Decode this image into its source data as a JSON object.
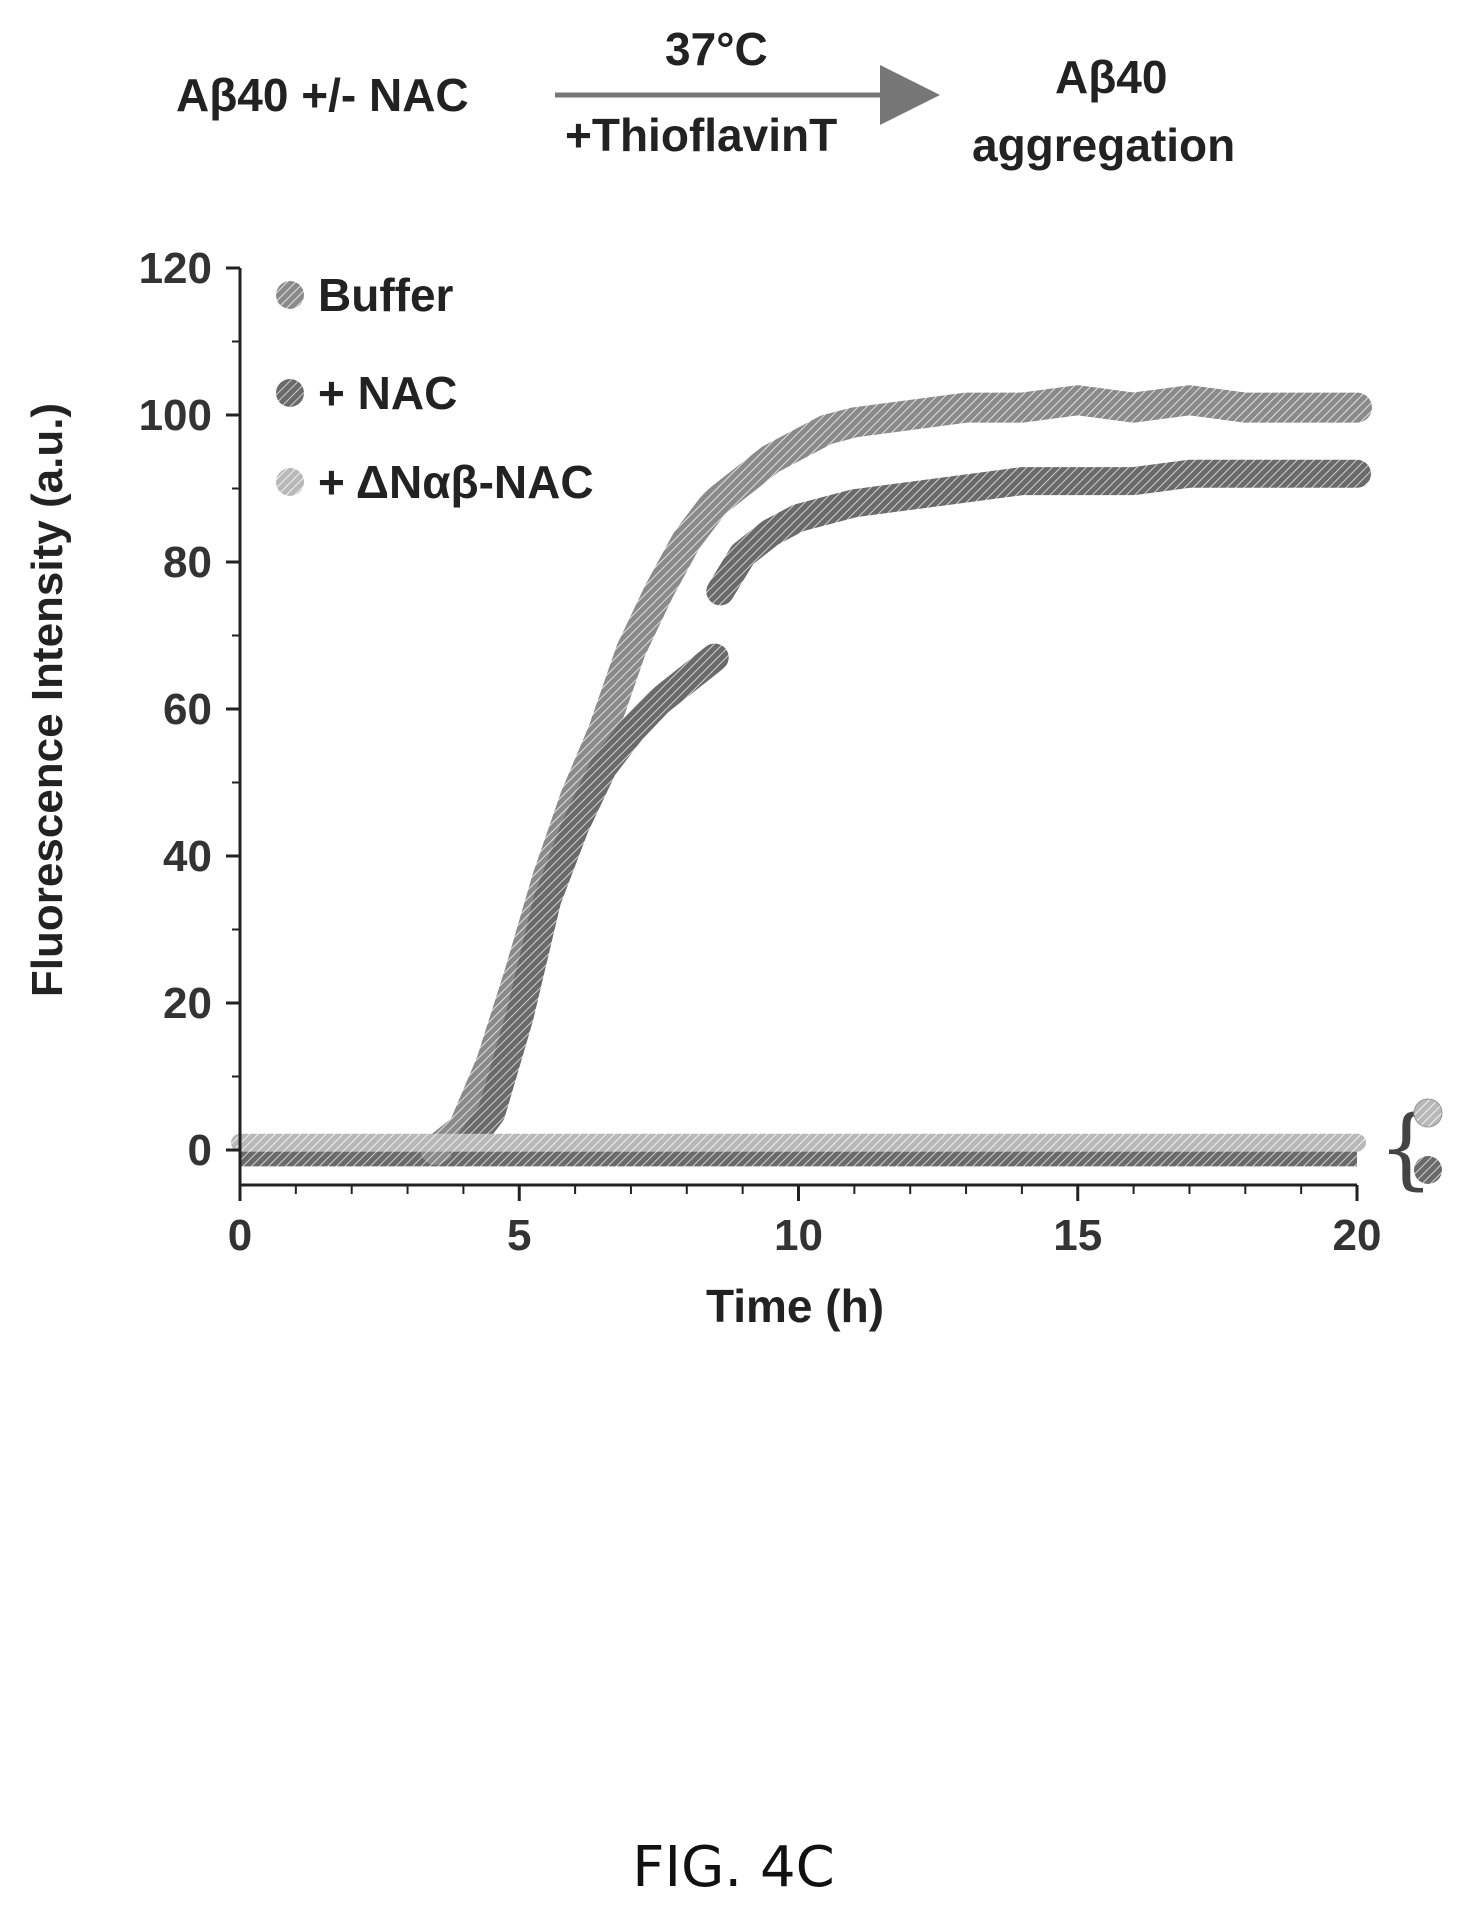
{
  "scheme": {
    "reactant": "Aβ40 +/- NAC",
    "condition_top": "37°C",
    "condition_bottom": "+ThioflavinT",
    "product_line1": "Aβ40",
    "product_line2": "aggregation"
  },
  "chart_data": {
    "type": "line",
    "xlabel": "Time (h)",
    "ylabel": "Fluorescence Intensity (a.u.)",
    "xlim": [
      0,
      20
    ],
    "ylim": [
      0,
      120
    ],
    "xticks": [
      0,
      5,
      10,
      15,
      20
    ],
    "yticks": [
      0,
      20,
      40,
      60,
      80,
      100,
      120
    ],
    "grid": false,
    "legend_position": "top-left",
    "series": [
      {
        "name": "Buffer",
        "color": "#8a8a8a",
        "segments": [
          {
            "x": [
              3.5,
              4.0,
              4.5,
              5.0,
              5.5,
              6.0,
              6.5,
              7.0,
              7.5,
              8.0,
              8.5,
              9.0,
              9.5,
              10.0,
              10.5,
              11.0,
              12.0,
              13.0,
              14.0,
              15.0,
              16.0,
              17.0,
              18.0,
              19.0,
              20.0
            ],
            "y": [
              0,
              3,
              12,
              24,
              37,
              48,
              57,
              68,
              76,
              83,
              88,
              91,
              94,
              96,
              98,
              99,
              100,
              101,
              101,
              102,
              101,
              102,
              101,
              101,
              101
            ]
          }
        ]
      },
      {
        "name": "+ NAC",
        "color": "#5a5a5a",
        "segments": [
          {
            "x": [
              4.0,
              4.5,
              5.0,
              5.5,
              6.0,
              6.5,
              7.0,
              7.5,
              8.0,
              8.5
            ],
            "y": [
              0,
              5,
              18,
              34,
              44,
              52,
              57,
              61,
              64,
              67
            ]
          },
          {
            "x": [
              8.6,
              9.0,
              9.5,
              10.0,
              10.5,
              11.0,
              12.0,
              13.0,
              14.0,
              15.0,
              16.0,
              17.0,
              18.0,
              19.0,
              20.0
            ],
            "y": [
              76,
              81,
              84,
              86,
              87,
              88,
              89,
              90,
              91,
              91,
              91,
              92,
              92,
              92,
              92
            ]
          }
        ]
      },
      {
        "name": "+ ΔNαβ-NAC",
        "color": "#b8b8b8",
        "segments": [
          {
            "x": [
              0,
              20
            ],
            "y": [
              1,
              1
            ]
          }
        ]
      }
    ],
    "baseline_series": {
      "name": "+ NAC",
      "y": -1
    },
    "right_bracket": "{"
  },
  "figure_label": "FIG. 4C"
}
